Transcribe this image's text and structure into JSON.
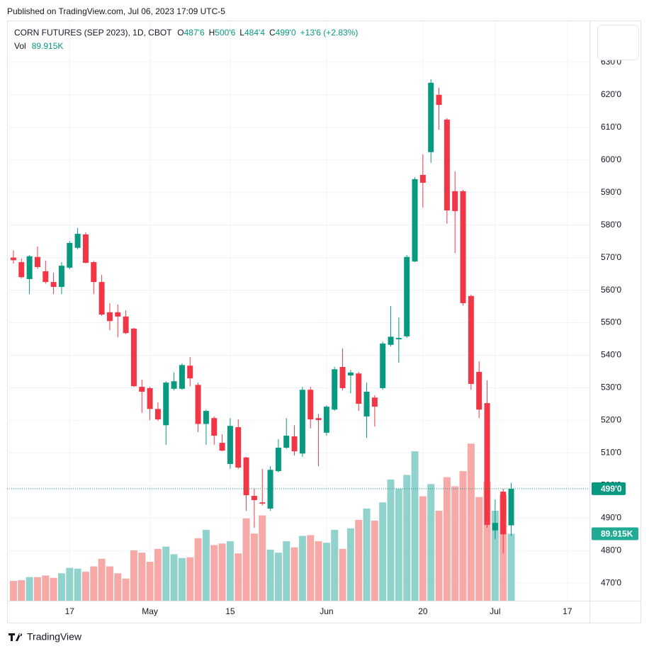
{
  "header": {
    "published": "Published on TradingView.com, Jul 06, 2023 17:09 UTC-5"
  },
  "chart_data": {
    "type": "candlestick",
    "title": "CORN FUTURES (SEP 2023), 1D, CBOT",
    "legend": [
      {
        "label": "O",
        "value": "487'6"
      },
      {
        "label": "H",
        "value": "500'6"
      },
      {
        "label": "L",
        "value": "484'4"
      },
      {
        "label": "C",
        "value": "499'0"
      }
    ],
    "change": "+13'6 (+2.83%)",
    "up_color": "#089981",
    "down_color": "#f23645",
    "volume_up_color": "#92d2cc",
    "volume_down_color": "#f7a9a7",
    "open": [
      570,
      568.6,
      563.4,
      570.2,
      565.8,
      562.5,
      561.0,
      566.9,
      573.0,
      577.1,
      568.6,
      562.5,
      553.2,
      553.2,
      551.9,
      548.2,
      530.3,
      529.9,
      523.5,
      518.5,
      529.7,
      529.7,
      536.8,
      530.9,
      518.9,
      520.7,
      513.1,
      506.6,
      517.9,
      508.6,
      496.8,
      494.8,
      492.9,
      504.4,
      511.6,
      515.1,
      509.8,
      529.4,
      520.7,
      516.2,
      523.3,
      536.4,
      533.8,
      534.4,
      521.2,
      527.0,
      529.9,
      543.2,
      544.9,
      545.8,
      568.8,
      595.4,
      602.4,
      620.0,
      612.4,
      590.4,
      590.4,
      558.2,
      534.9,
      525.3,
      486.2,
      498.1,
      487.75
    ],
    "high": [
      572.2,
      569.7,
      570.8,
      573.4,
      569.0,
      565.4,
      568.6,
      575.1,
      579.1,
      577.8,
      569.0,
      564.7,
      556.0,
      555.6,
      553.8,
      548.4,
      532.5,
      530.3,
      525.5,
      532.0,
      534.7,
      537.5,
      539.4,
      531.6,
      523.3,
      521.2,
      515.7,
      520.7,
      520.3,
      508.8,
      499.0,
      505.1,
      505.9,
      514.2,
      520.7,
      518.5,
      530.3,
      530.3,
      522.0,
      524.6,
      536.4,
      542.1,
      535.5,
      534.9,
      531.6,
      527.7,
      544.2,
      555.1,
      551.6,
      570.8,
      594.7,
      601.7,
      624.8,
      622.2,
      612.8,
      596.5,
      590.8,
      558.6,
      538.1,
      532.3,
      495.7,
      499.0,
      500.75
    ],
    "low": [
      568.2,
      563.6,
      558.8,
      566.5,
      562.0,
      558.8,
      558.8,
      566.4,
      572.5,
      568.2,
      558.8,
      552.1,
      547.7,
      545.5,
      546.5,
      530.3,
      522.3,
      520.1,
      519.8,
      512.5,
      529.2,
      529.4,
      530.5,
      516.4,
      512.5,
      512.5,
      510.5,
      505.1,
      505.1,
      492.2,
      487.0,
      493.9,
      492.2,
      504.0,
      511.2,
      509.2,
      508.8,
      517.5,
      505.9,
      515.3,
      522.9,
      529.2,
      528.3,
      522.9,
      514.6,
      518.1,
      529.4,
      542.7,
      537.7,
      545.3,
      568.6,
      585.4,
      599.1,
      609.3,
      580.4,
      571.4,
      555.3,
      529.4,
      520.7,
      487.0,
      483.5,
      479.2,
      484.5
    ],
    "close": [
      569.2,
      564.0,
      570.4,
      567.1,
      562.5,
      561.0,
      567.5,
      574.5,
      577.3,
      568.4,
      562.5,
      552.5,
      550.5,
      551.9,
      546.8,
      530.5,
      528.8,
      523.5,
      520.3,
      531.6,
      532.0,
      537.0,
      532.9,
      518.9,
      522.9,
      515.3,
      510.7,
      518.3,
      505.5,
      497.0,
      495.5,
      494.4,
      504.8,
      511.6,
      515.3,
      510.5,
      529.4,
      520.3,
      520.1,
      524.2,
      535.7,
      529.9,
      534.7,
      525.1,
      528.8,
      524.2,
      543.6,
      545.7,
      545.3,
      570.2,
      594.1,
      593.0,
      623.7,
      616.9,
      584.5,
      584.3,
      556.0,
      531.2,
      523.3,
      487.9,
      488.5,
      485.0,
      499
    ],
    "volume": {
      "name": "Vol",
      "last_label": "89.915K",
      "values": [
        26.6,
        27.6,
        31.7,
        31.7,
        33.8,
        30.7,
        36.8,
        44.0,
        43.0,
        38.9,
        46.1,
        56.3,
        46.1,
        36.8,
        29.7,
        67.6,
        64.5,
        52.2,
        69.6,
        72.6,
        62.4,
        57.3,
        58.3,
        83.9,
        95.2,
        74.7,
        76.8,
        79.8,
        63.5,
        110.5,
        90.1,
        114.6,
        68.6,
        64.5,
        79.8,
        71.6,
        87.0,
        88.0,
        79.8,
        77.8,
        95.2,
        69.6,
        97.2,
        108.5,
        123.8,
        107.5,
        132.0,
        162.7,
        150.5,
        168.9,
        200.6,
        140.2,
        156.6,
        120.8,
        165.8,
        153.5,
        174.0,
        210.9,
        139.2,
        159.6,
        120.8,
        142.3,
        89.915
      ],
      "ylim": [
        0,
        778
      ]
    },
    "last_price": {
      "value": 499,
      "label": "499'0"
    },
    "xlim": [
      -0.79,
      71.75
    ],
    "xticks": [
      {
        "value": 7,
        "label": "17"
      },
      {
        "value": 17,
        "label": "May"
      },
      {
        "value": 27,
        "label": "15"
      },
      {
        "value": 39,
        "label": "Jun"
      },
      {
        "value": 51,
        "label": "20"
      },
      {
        "value": 60,
        "label": "Jul"
      },
      {
        "value": 69,
        "label": "17"
      }
    ],
    "ylim": [
      464.6,
      642.6
    ],
    "yticks": [
      {
        "value": 470,
        "label": "470'0"
      },
      {
        "value": 480,
        "label": "480'0"
      },
      {
        "value": 490,
        "label": "490'0"
      },
      {
        "value": 500,
        "label": "500'0"
      },
      {
        "value": 510,
        "label": "510'0"
      },
      {
        "value": 520,
        "label": "520'0"
      },
      {
        "value": 530,
        "label": "530'0"
      },
      {
        "value": 540,
        "label": "540'0"
      },
      {
        "value": 550,
        "label": "550'0"
      },
      {
        "value": 560,
        "label": "560'0"
      },
      {
        "value": 570,
        "label": "570'0"
      },
      {
        "value": 580,
        "label": "580'0"
      },
      {
        "value": 590,
        "label": "590'0"
      },
      {
        "value": 600,
        "label": "600'0"
      },
      {
        "value": 610,
        "label": "610'0"
      },
      {
        "value": 620,
        "label": "620'0"
      },
      {
        "value": 630,
        "label": "630'0"
      }
    ],
    "grid": true
  },
  "footer": {
    "brand": "TradingView"
  }
}
